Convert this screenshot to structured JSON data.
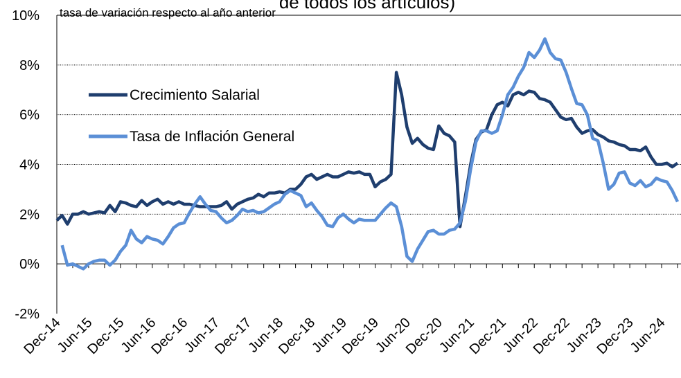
{
  "chart_data": {
    "type": "line",
    "title": "de todos los artículos)",
    "ylabel": "tasa de variación respecto al año anterior",
    "categories": [
      "Dec-14",
      null,
      null,
      null,
      null,
      null,
      "Jun-15",
      null,
      null,
      null,
      null,
      null,
      "Dec-15",
      null,
      null,
      null,
      null,
      null,
      "Jun-16",
      null,
      null,
      null,
      null,
      null,
      "Dec-16",
      null,
      null,
      null,
      null,
      null,
      "Jun-17",
      null,
      null,
      null,
      null,
      null,
      "Dec-17",
      null,
      null,
      null,
      null,
      null,
      "Jun-18",
      null,
      null,
      null,
      null,
      null,
      "Dec-18",
      null,
      null,
      null,
      null,
      null,
      "Jun-19",
      null,
      null,
      null,
      null,
      null,
      "Dec-19",
      null,
      null,
      null,
      null,
      null,
      "Jun-20",
      null,
      null,
      null,
      null,
      null,
      "Dec-20",
      null,
      null,
      null,
      null,
      null,
      "Jun-21",
      null,
      null,
      null,
      null,
      null,
      "Dec-21",
      null,
      null,
      null,
      null,
      null,
      "Jun-22",
      null,
      null,
      null,
      null,
      null,
      "Dec-22",
      null,
      null,
      null,
      null,
      null,
      "Jun-23",
      null,
      null,
      null,
      null,
      null,
      "Dec-23",
      null,
      null,
      null,
      null,
      null,
      "Jun-24",
      null,
      null,
      null
    ],
    "series": [
      {
        "name": "Crecimiento Salarial",
        "color": "#1f3e6e",
        "values": [
          1.75,
          1.95,
          1.6,
          2.0,
          2.0,
          2.1,
          2.0,
          2.05,
          2.1,
          2.05,
          2.35,
          2.1,
          2.5,
          2.45,
          2.35,
          2.3,
          2.55,
          2.35,
          2.5,
          2.6,
          2.4,
          2.5,
          2.4,
          2.5,
          2.4,
          2.4,
          2.35,
          2.3,
          2.3,
          2.3,
          2.3,
          2.35,
          2.5,
          2.2,
          2.4,
          2.5,
          2.6,
          2.65,
          2.8,
          2.7,
          2.85,
          2.85,
          2.9,
          2.85,
          3.0,
          3.0,
          3.2,
          3.5,
          3.6,
          3.4,
          3.5,
          3.6,
          3.5,
          3.5,
          3.6,
          3.7,
          3.65,
          3.7,
          3.6,
          3.6,
          3.1,
          3.3,
          3.4,
          3.6,
          7.7,
          6.8,
          5.5,
          4.85,
          5.05,
          4.8,
          4.65,
          4.6,
          5.55,
          5.25,
          5.15,
          4.9,
          1.5,
          2.7,
          4.0,
          5.0,
          5.3,
          5.4,
          6.0,
          6.4,
          6.5,
          6.35,
          6.8,
          6.9,
          6.8,
          6.95,
          6.9,
          6.65,
          6.6,
          6.5,
          6.2,
          5.9,
          5.8,
          5.85,
          5.5,
          5.25,
          5.35,
          5.4,
          5.2,
          5.1,
          4.95,
          4.9,
          4.8,
          4.75,
          4.6,
          4.6,
          4.55,
          4.7,
          4.3,
          4.0,
          4.0,
          4.05,
          3.9,
          4.05
        ]
      },
      {
        "name": "Tasa de Inflación General",
        "color": "#5b8fd6",
        "values": [
          null,
          0.75,
          -0.05,
          0.0,
          -0.1,
          -0.2,
          0.0,
          0.1,
          0.15,
          0.15,
          -0.05,
          0.15,
          0.5,
          0.75,
          1.35,
          1.0,
          0.85,
          1.1,
          1.0,
          0.95,
          0.8,
          1.1,
          1.45,
          1.6,
          1.65,
          2.05,
          2.4,
          2.7,
          2.4,
          2.15,
          2.1,
          1.85,
          1.65,
          1.75,
          1.95,
          2.2,
          2.1,
          2.15,
          2.05,
          2.1,
          2.25,
          2.4,
          2.5,
          2.8,
          2.95,
          2.85,
          2.75,
          2.3,
          2.45,
          2.15,
          1.9,
          1.55,
          1.5,
          1.85,
          2.0,
          1.8,
          1.65,
          1.8,
          1.75,
          1.75,
          1.75,
          2.0,
          2.25,
          2.45,
          2.3,
          1.5,
          0.3,
          0.1,
          0.6,
          0.95,
          1.3,
          1.35,
          1.2,
          1.2,
          1.35,
          1.4,
          1.65,
          2.5,
          3.8,
          4.9,
          5.35,
          5.35,
          5.25,
          5.35,
          6.0,
          6.8,
          7.1,
          7.55,
          7.9,
          8.5,
          8.3,
          8.6,
          9.05,
          8.5,
          8.25,
          8.2,
          7.7,
          7.05,
          6.45,
          6.4,
          6.0,
          5.05,
          4.95,
          4.05,
          3.0,
          3.2,
          3.65,
          3.7,
          3.25,
          3.15,
          3.35,
          3.1,
          3.2,
          3.45,
          3.35,
          3.3,
          2.95,
          2.5
        ]
      }
    ],
    "ylim": [
      -2,
      10
    ],
    "yticks": [
      {
        "value": -2,
        "label": "-2%"
      },
      {
        "value": 0,
        "label": "0%"
      },
      {
        "value": 2,
        "label": "2%"
      },
      {
        "value": 4,
        "label": "4%"
      },
      {
        "value": 6,
        "label": "6%"
      },
      {
        "value": 8,
        "label": "8%"
      },
      {
        "value": 10,
        "label": "10%"
      }
    ],
    "grid": true,
    "legend": "upper left"
  }
}
